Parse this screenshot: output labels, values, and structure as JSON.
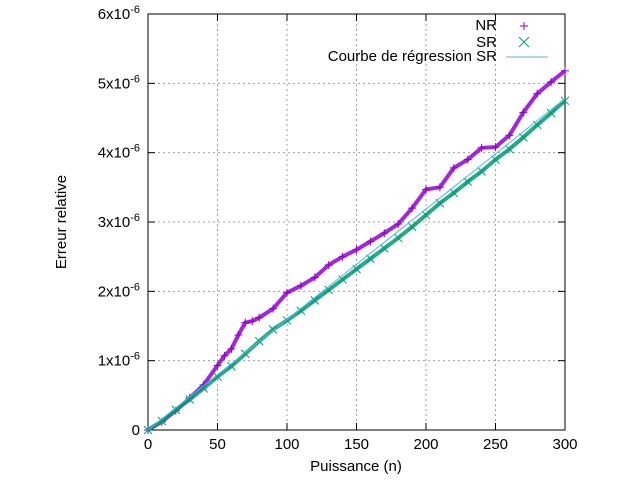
{
  "chart_data": {
    "type": "scatter",
    "title": "",
    "xlabel": "Puissance (n)",
    "ylabel": "Erreur relative",
    "xlim": [
      0,
      300
    ],
    "ylim": [
      0,
      6e-06
    ],
    "grid": true,
    "legend_position": "top-right",
    "x_ticks": [
      0,
      50,
      100,
      150,
      200,
      250,
      300
    ],
    "y_ticks": [
      {
        "value": 0,
        "mantissa": "0",
        "exponent": ""
      },
      {
        "value": 1e-06,
        "mantissa": "1x10",
        "exponent": "-6"
      },
      {
        "value": 2e-06,
        "mantissa": "2x10",
        "exponent": "-6"
      },
      {
        "value": 3e-06,
        "mantissa": "3x10",
        "exponent": "-6"
      },
      {
        "value": 4e-06,
        "mantissa": "4x10",
        "exponent": "-6"
      },
      {
        "value": 5e-06,
        "mantissa": "5x10",
        "exponent": "-6"
      },
      {
        "value": 6e-06,
        "mantissa": "6x10",
        "exponent": "-6"
      }
    ],
    "series": [
      {
        "name": "NR",
        "marker": "plus",
        "color": "#9400d3",
        "x": [
          0,
          10,
          20,
          30,
          40,
          50,
          55,
          60,
          65,
          70,
          75,
          80,
          90,
          100,
          110,
          120,
          130,
          140,
          150,
          160,
          170,
          180,
          190,
          200,
          210,
          220,
          230,
          240,
          250,
          260,
          270,
          280,
          290,
          300
        ],
        "y": [
          0,
          1.2e-07,
          2.8e-07,
          4.6e-07,
          6.5e-07,
          9.3e-07,
          1.07e-06,
          1.17e-06,
          1.37e-06,
          1.55e-06,
          1.57e-06,
          1.62e-06,
          1.75e-06,
          1.98e-06,
          2.08e-06,
          2.2e-06,
          2.38e-06,
          2.5e-06,
          2.6e-06,
          2.72e-06,
          2.84e-06,
          2.97e-06,
          3.2e-06,
          3.47e-06,
          3.5e-06,
          3.78e-06,
          3.9e-06,
          4.07e-06,
          4.08e-06,
          4.25e-06,
          4.58e-06,
          4.85e-06,
          5.02e-06,
          5.18e-06
        ]
      },
      {
        "name": "SR",
        "marker": "cross",
        "color": "#009e73",
        "x": [
          0,
          10,
          20,
          30,
          40,
          50,
          60,
          70,
          80,
          90,
          100,
          110,
          120,
          130,
          140,
          150,
          160,
          170,
          180,
          190,
          200,
          210,
          220,
          230,
          240,
          250,
          260,
          270,
          280,
          290,
          300
        ],
        "y": [
          0,
          1.3e-07,
          2.9e-07,
          4.4e-07,
          6e-07,
          7.7e-07,
          9.2e-07,
          1.1e-06,
          1.28e-06,
          1.45e-06,
          1.58e-06,
          1.72e-06,
          1.87e-06,
          2.02e-06,
          2.17e-06,
          2.32e-06,
          2.47e-06,
          2.62e-06,
          2.77e-06,
          2.93e-06,
          3.1e-06,
          3.27e-06,
          3.42e-06,
          3.58e-06,
          3.73e-06,
          3.9e-06,
          4.05e-06,
          4.22e-06,
          4.4e-06,
          4.57e-06,
          4.75e-06
        ]
      },
      {
        "name": "Courbe de régression SR",
        "marker": "line",
        "color": "#56b4e9",
        "x": [
          0,
          300
        ],
        "y": [
          0,
          4.78e-06
        ]
      }
    ]
  }
}
